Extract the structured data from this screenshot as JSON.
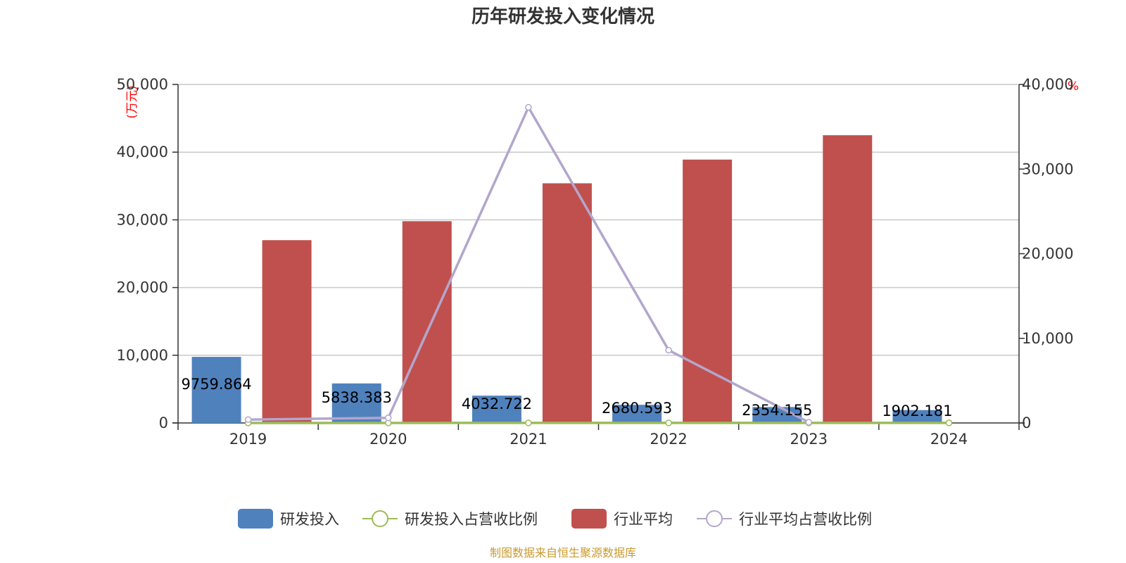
{
  "chart_data": {
    "type": "bar",
    "title": "历年研发投入变化情况",
    "categories": [
      "2019",
      "2020",
      "2021",
      "2022",
      "2023",
      "2024"
    ],
    "y_left": {
      "unit": "(万元)",
      "min": 0,
      "max": 50000,
      "ticks": [
        0,
        10000,
        20000,
        30000,
        40000,
        50000
      ],
      "tick_labels": [
        "0",
        "10,000",
        "20,000",
        "30,000",
        "40,000",
        "50,000"
      ]
    },
    "y_right": {
      "unit": "%",
      "min": 0,
      "max": 40000,
      "ticks": [
        0,
        10000,
        20000,
        30000,
        40000
      ],
      "tick_labels": [
        "0",
        "10,000",
        "20,000",
        "30,000",
        "40,000"
      ]
    },
    "series": [
      {
        "name": "研发投入",
        "kind": "bar",
        "axis": "left",
        "color": "#4f81bd",
        "values": [
          9759.864,
          5838.383,
          4032.722,
          2680.593,
          2354.155,
          1902.181
        ],
        "labels": [
          "9759.864",
          "5838.383",
          "4032.722",
          "2680.593",
          "2354.155",
          "1902.181"
        ]
      },
      {
        "name": "研发投入占营收比例",
        "kind": "line",
        "axis": "right",
        "color": "#9bbb59",
        "values": [
          5,
          5,
          6,
          7,
          8,
          9
        ]
      },
      {
        "name": "行业平均",
        "kind": "bar",
        "axis": "left",
        "color": "#c0504d",
        "values": [
          27000,
          29800,
          35400,
          38900,
          42500,
          null
        ]
      },
      {
        "name": "行业平均占营收比例",
        "kind": "line",
        "axis": "right",
        "color": "#b3a6cc",
        "values": [
          400,
          600,
          37300,
          8600,
          80,
          null
        ]
      }
    ],
    "grid": true,
    "legend_position": "bottom"
  },
  "source": "制图数据来自恒生聚源数据库"
}
